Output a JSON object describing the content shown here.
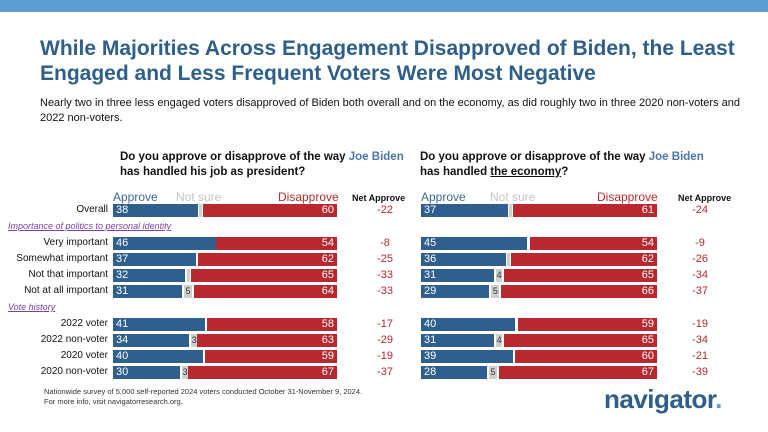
{
  "title": "While Majorities Across Engagement Disapproved of Biden, the Least Engaged and Less Frequent Voters Were Most Negative",
  "subtitle": "Nearly two in three less engaged voters disapproved of Biden both overall and on the economy, as did roughly two in three 2020 non-voters and 2022 non-voters.",
  "legend": {
    "approve": "Approve",
    "not_sure": "Not sure",
    "disapprove": "Disapprove",
    "net": "Net Approve"
  },
  "colors": {
    "approve": "#2f5f8f",
    "disapprove": "#b8282e",
    "not_sure": "#cfcfcf",
    "title": "#2e5f8a"
  },
  "groups": {
    "identity": "Importance of politics to personal identity",
    "vote": "Vote history"
  },
  "row_labels": [
    "Overall",
    "Very important",
    "Somewhat important",
    "Not that important",
    "Not at all important",
    "2022 voter",
    "2022 non-voter",
    "2020 voter",
    "2020 non-voter"
  ],
  "chart_data": [
    {
      "type": "bar",
      "orientation": "horizontal-stacked",
      "question": {
        "pre": "Do you approve or disapprove of the way ",
        "name": "Joe Biden",
        "mid": " has handled ",
        "topic": "his job as president",
        "post": "?"
      },
      "categories": [
        "Overall",
        "Very important",
        "Somewhat important",
        "Not that important",
        "Not at all important",
        "2022 voter",
        "2022 non-voter",
        "2020 voter",
        "2020 non-voter"
      ],
      "approve": [
        38,
        46,
        37,
        32,
        31,
        41,
        34,
        40,
        30
      ],
      "not_sure_label": [
        null,
        null,
        null,
        null,
        5,
        null,
        3,
        null,
        3
      ],
      "disapprove": [
        60,
        54,
        62,
        65,
        64,
        58,
        63,
        59,
        67
      ],
      "net": [
        -22,
        -8,
        -25,
        -33,
        -33,
        -17,
        -29,
        -19,
        -37
      ]
    },
    {
      "type": "bar",
      "orientation": "horizontal-stacked",
      "question": {
        "pre": "Do you approve or disapprove of the way ",
        "name": "Joe Biden",
        "mid": " has handled ",
        "topic": "the economy",
        "post": "?"
      },
      "categories": [
        "Overall",
        "Very important",
        "Somewhat important",
        "Not that important",
        "Not at all important",
        "2022 voter",
        "2022 non-voter",
        "2020 voter",
        "2020 non-voter"
      ],
      "approve": [
        37,
        45,
        36,
        31,
        29,
        40,
        31,
        39,
        28
      ],
      "not_sure_label": [
        null,
        null,
        null,
        4,
        5,
        null,
        4,
        null,
        5
      ],
      "disapprove": [
        61,
        54,
        62,
        65,
        66,
        59,
        65,
        60,
        67
      ],
      "net": [
        -24,
        -9,
        -26,
        -34,
        -37,
        -19,
        -34,
        -21,
        -39
      ]
    }
  ],
  "footnote": [
    "Nationwide survey of 5,000 self-reported 2024 voters conducted October 31-November 9, 2024.",
    "For more info, visit navigatorresearch.org."
  ],
  "logo": {
    "text": "navigator",
    "dot": "."
  }
}
